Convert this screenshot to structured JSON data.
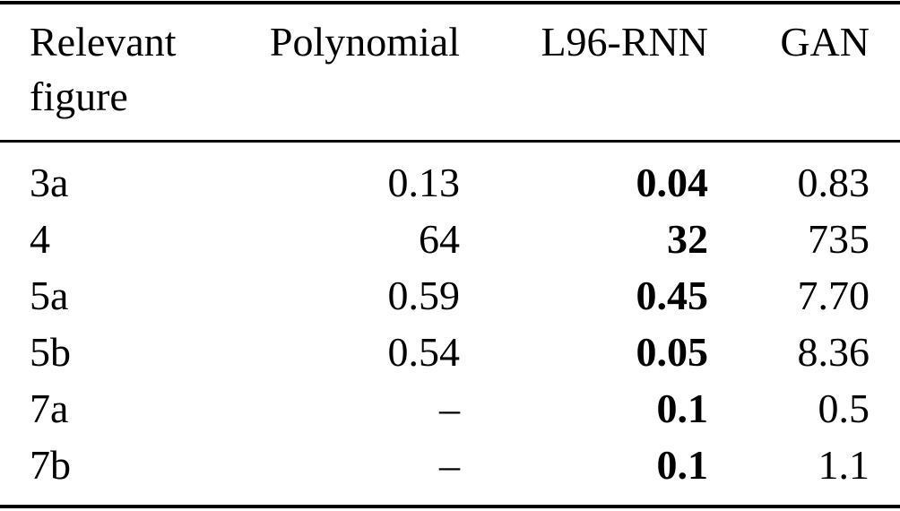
{
  "page": {
    "background": "#ffffff",
    "text_color": "#000000",
    "rule_color": "#000000"
  },
  "table": {
    "description": "results-comparison-table",
    "header": {
      "col1": "Relevant figure",
      "col2": "Polynomial",
      "col3": "L96-RNN",
      "col4": "GAN"
    },
    "bold_column": "l96_rnn",
    "rows": [
      {
        "figure": "3a",
        "polynomial": "0.13",
        "l96_rnn": "0.04",
        "gan": "0.83"
      },
      {
        "figure": "4",
        "polynomial": "64",
        "l96_rnn": "32",
        "gan": "735"
      },
      {
        "figure": "5a",
        "polynomial": "0.59",
        "l96_rnn": "0.45",
        "gan": "7.70"
      },
      {
        "figure": "5b",
        "polynomial": "0.54",
        "l96_rnn": "0.05",
        "gan": "8.36"
      },
      {
        "figure": "7a",
        "polynomial": "–",
        "l96_rnn": "0.1",
        "gan": "0.5"
      },
      {
        "figure": "7b",
        "polynomial": "–",
        "l96_rnn": "0.1",
        "gan": "1.1"
      }
    ]
  }
}
